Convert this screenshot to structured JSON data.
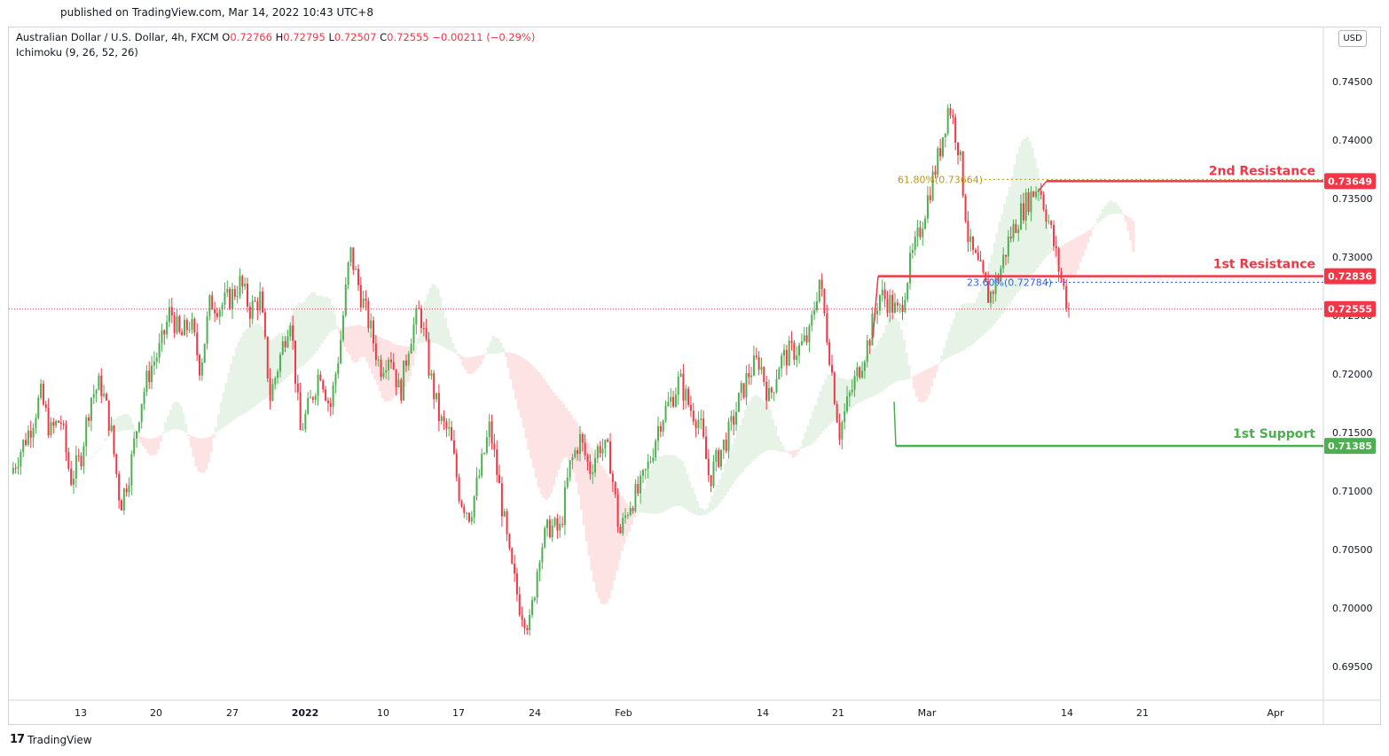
{
  "header": {
    "published": "published on TradingView.com, Mar 14, 2022 10:43 UTC+8",
    "symbol_prefix": "Australian Dollar / U.S. Dollar, 4h, FXCM",
    "o_label": "O",
    "o_value": "0.72766",
    "h_label": "H",
    "h_value": "0.72795",
    "l_label": "L",
    "l_value": "0.72507",
    "c_label": "C",
    "c_value": "0.72555",
    "change": "−0.00211 (−0.29%)",
    "indicator": "Ichimoku (9, 26, 52, 26)",
    "currency_button": "USD"
  },
  "footer": {
    "brand": "TradingView",
    "logo": "17"
  },
  "colors": {
    "up": "#4caf50",
    "down": "#f23645",
    "support": "#4caf50",
    "resistance": "#f23645",
    "fib_618": "#c39412",
    "fib_236": "#2962ff",
    "cloud_up": "#e6f3e6",
    "cloud_down": "#fde3e3"
  },
  "chart_data": {
    "type": "candlestick",
    "title": "Australian Dollar / U.S. Dollar, 4h, FXCM",
    "ylim": [
      0.6925,
      0.7475
    ],
    "y_ticks": [
      "0.74500",
      "0.74000",
      "0.73500",
      "0.73000",
      "0.72500",
      "0.72000",
      "0.71500",
      "0.71000",
      "0.70500",
      "0.70000",
      "0.69500"
    ],
    "x_ticks": [
      "13",
      "20",
      "27",
      "2022",
      "10",
      "17",
      "24",
      "Feb",
      "14",
      "21",
      "Mar",
      "14",
      "21",
      "Apr"
    ],
    "x_tick_bold": [
      false,
      false,
      false,
      true,
      false,
      false,
      false,
      false,
      false,
      false,
      false,
      false,
      false,
      false
    ],
    "last_price": 0.72555,
    "levels": [
      {
        "name": "2nd Resistance",
        "value": 0.73649,
        "label": "0.73649",
        "color": "#f23645"
      },
      {
        "name": "1st Resistance",
        "value": 0.72836,
        "label": "0.72836",
        "color": "#f23645"
      },
      {
        "name": "1st Support",
        "value": 0.71385,
        "label": "0.71385",
        "color": "#4caf50"
      }
    ],
    "fibonacci": [
      {
        "label": "61.80%(0.73664)",
        "value": 0.73664
      },
      {
        "label": "23.60%(0.72784)",
        "value": 0.72784
      }
    ],
    "price_path": [
      [
        0,
        0.7115
      ],
      [
        2,
        0.7155
      ],
      [
        3,
        0.7182
      ],
      [
        4,
        0.715
      ],
      [
        5,
        0.7162
      ],
      [
        6,
        0.711
      ],
      [
        7,
        0.7128
      ],
      [
        8,
        0.718
      ],
      [
        9,
        0.7192
      ],
      [
        10,
        0.7155
      ],
      [
        11,
        0.7088
      ],
      [
        12,
        0.712
      ],
      [
        13,
        0.7175
      ],
      [
        14,
        0.7205
      ],
      [
        15,
        0.7222
      ],
      [
        16,
        0.7255
      ],
      [
        17,
        0.723
      ],
      [
        18,
        0.7245
      ],
      [
        19,
        0.7205
      ],
      [
        20,
        0.7262
      ],
      [
        21,
        0.7258
      ],
      [
        22,
        0.7265
      ],
      [
        23,
        0.7278
      ],
      [
        24,
        0.7255
      ],
      [
        25,
        0.7265
      ],
      [
        26,
        0.718
      ],
      [
        27,
        0.7215
      ],
      [
        28,
        0.7252
      ],
      [
        29,
        0.715
      ],
      [
        30,
        0.7175
      ],
      [
        31,
        0.7205
      ],
      [
        32,
        0.717
      ],
      [
        33,
        0.7225
      ],
      [
        34,
        0.7305
      ],
      [
        35,
        0.727
      ],
      [
        36,
        0.724
      ],
      [
        37,
        0.7205
      ],
      [
        38,
        0.722
      ],
      [
        39,
        0.7182
      ],
      [
        40,
        0.7232
      ],
      [
        41,
        0.7255
      ],
      [
        42,
        0.72
      ],
      [
        43,
        0.716
      ],
      [
        44,
        0.7148
      ],
      [
        45,
        0.7095
      ],
      [
        46,
        0.708
      ],
      [
        47,
        0.7115
      ],
      [
        48,
        0.7155
      ],
      [
        49,
        0.71
      ],
      [
        50,
        0.704
      ],
      [
        51,
        0.7002
      ],
      [
        52,
        0.6985
      ],
      [
        53,
        0.705
      ],
      [
        54,
        0.707
      ],
      [
        55,
        0.7065
      ],
      [
        56,
        0.712
      ],
      [
        57,
        0.7145
      ],
      [
        58,
        0.7118
      ],
      [
        59,
        0.714
      ],
      [
        60,
        0.713
      ],
      [
        61,
        0.7062
      ],
      [
        62,
        0.709
      ],
      [
        63,
        0.71
      ],
      [
        64,
        0.7125
      ],
      [
        65,
        0.716
      ],
      [
        66,
        0.7175
      ],
      [
        67,
        0.7195
      ],
      [
        68,
        0.7172
      ],
      [
        69,
        0.716
      ],
      [
        70,
        0.711
      ],
      [
        71,
        0.7132
      ],
      [
        72,
        0.715
      ],
      [
        73,
        0.7178
      ],
      [
        74,
        0.7202
      ],
      [
        75,
        0.7212
      ],
      [
        76,
        0.7178
      ],
      [
        77,
        0.721
      ],
      [
        78,
        0.7218
      ],
      [
        79,
        0.7222
      ],
      [
        80,
        0.7232
      ],
      [
        81,
        0.7282
      ],
      [
        82,
        0.722
      ],
      [
        83,
        0.715
      ],
      [
        84,
        0.718
      ],
      [
        85,
        0.7205
      ],
      [
        86,
        0.723
      ],
      [
        87,
        0.7268
      ],
      [
        88,
        0.7262
      ],
      [
        89,
        0.725
      ],
      [
        90,
        0.729
      ],
      [
        91,
        0.732
      ],
      [
        92,
        0.7355
      ],
      [
        93,
        0.7388
      ],
      [
        94,
        0.7432
      ],
      [
        95,
        0.7392
      ],
      [
        96,
        0.731
      ],
      [
        97,
        0.729
      ],
      [
        98,
        0.7265
      ],
      [
        99,
        0.7285
      ],
      [
        100,
        0.7315
      ],
      [
        101,
        0.7335
      ],
      [
        102,
        0.735
      ],
      [
        103,
        0.7362
      ],
      [
        104,
        0.733
      ],
      [
        105,
        0.729
      ],
      [
        106,
        0.7255
      ]
    ]
  }
}
